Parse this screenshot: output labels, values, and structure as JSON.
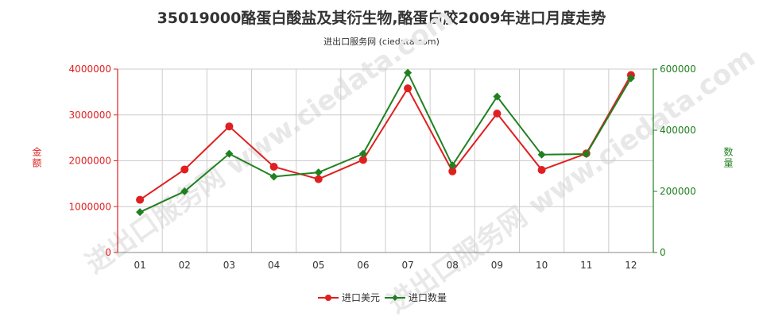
{
  "title": "35019000酪蛋白酸盐及其衍生物,酪蛋白胶2009年进口月度走势",
  "subtitle": "进出口服务网 (ciedata.com)",
  "watermark": "进出口服务网 www.ciedata.com",
  "colors": {
    "amount": "#e02020",
    "quantity": "#208020",
    "grid": "#cccccc"
  },
  "chart_data": {
    "type": "line",
    "categories": [
      "01",
      "02",
      "03",
      "04",
      "05",
      "06",
      "07",
      "08",
      "09",
      "10",
      "11",
      "12"
    ],
    "y_left": {
      "label": "金额",
      "lim": [
        0,
        4000000
      ],
      "ticks": [
        0,
        1000000,
        2000000,
        3000000,
        4000000
      ]
    },
    "y_right": {
      "label": "数量",
      "lim": [
        0,
        600000
      ],
      "ticks": [
        0,
        200000,
        400000,
        600000
      ]
    },
    "series": [
      {
        "name": "进口美元",
        "axis": "left",
        "color": "#e02020",
        "marker": "circle",
        "values": [
          1150000,
          1810000,
          2750000,
          1870000,
          1600000,
          2020000,
          3580000,
          1770000,
          3030000,
          1800000,
          2160000,
          3870000
        ]
      },
      {
        "name": "进口数量",
        "axis": "right",
        "color": "#208020",
        "marker": "diamond",
        "values": [
          132000,
          200000,
          323000,
          248000,
          262000,
          323000,
          588000,
          285000,
          510000,
          320000,
          322000,
          570000
        ]
      }
    ],
    "grid": true,
    "legend_position": "bottom-center"
  }
}
